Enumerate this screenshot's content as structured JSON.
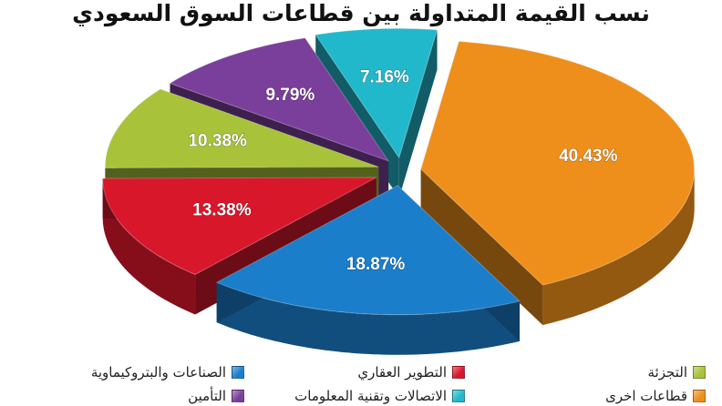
{
  "chart_data": {
    "type": "pie",
    "title": "نسب القيمة المتداولة بين قطاعات السوق السعودي",
    "slices": [
      {
        "label": "قطاعات اخرى",
        "value": 40.43,
        "display": "40.43%",
        "color": "#ee8f1c"
      },
      {
        "label": "الصناعات والبتروكيماوية",
        "value": 18.87,
        "display": "18.87%",
        "color": "#1b7ecb"
      },
      {
        "label": "التطوير العقاري",
        "value": 13.38,
        "display": "13.38%",
        "color": "#d8172b"
      },
      {
        "label": "التجزئة",
        "value": 10.38,
        "display": "10.38%",
        "color": "#a8c23a"
      },
      {
        "label": "التأمين",
        "value": 9.79,
        "display": "9.79%",
        "color": "#7a3f9a"
      },
      {
        "label": "الاتصالات وتقنية المعلومات",
        "value": 7.16,
        "display": "7.16%",
        "color": "#22b8cc"
      }
    ],
    "legend_position": "bottom",
    "style": "exploded-3d"
  }
}
